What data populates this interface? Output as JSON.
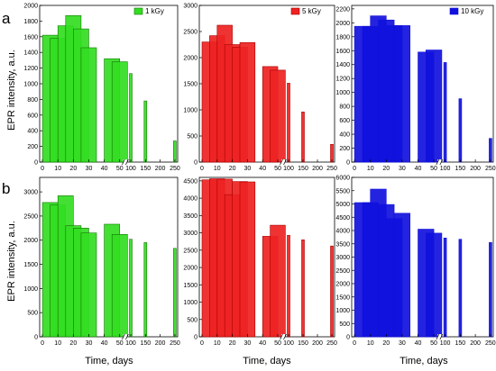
{
  "figure": {
    "y_axis_label": "EPR intensity, a.u.",
    "x_axis_label": "Time, days",
    "row_labels": [
      "a",
      "b"
    ]
  },
  "chart_data": [
    {
      "type": "bar",
      "row": "a",
      "legend": "1 kGy",
      "legend_position": "top-right",
      "color": "#33dd22",
      "edge_color": "#117700",
      "x_tick_labels": [
        "0",
        "10",
        "20",
        "30",
        "40",
        "50",
        "100",
        "150",
        "200",
        "250"
      ],
      "x_break": true,
      "ylim": [
        0,
        2000
      ],
      "y_ticks": [
        0,
        200,
        400,
        600,
        800,
        1000,
        1200,
        1400,
        1600,
        1800,
        2000
      ],
      "x": [
        0,
        5,
        10,
        15,
        20,
        25,
        40,
        45,
        100,
        150,
        250
      ],
      "values": [
        1620,
        1580,
        1740,
        1870,
        1700,
        1460,
        1320,
        1280,
        1130,
        780,
        270
      ]
    },
    {
      "type": "bar",
      "row": "a",
      "legend": "5 kGy",
      "legend_position": "top-right",
      "color": "#ee2222",
      "edge_color": "#aa0000",
      "x_tick_labels": [
        "0",
        "10",
        "20",
        "30",
        "40",
        "50",
        "100",
        "150",
        "200",
        "250"
      ],
      "x_break": true,
      "ylim": [
        0,
        3000
      ],
      "y_ticks": [
        0,
        500,
        1000,
        1500,
        2000,
        2500,
        3000
      ],
      "x": [
        0,
        5,
        10,
        15,
        20,
        25,
        40,
        45,
        100,
        150,
        250
      ],
      "values": [
        2300,
        2420,
        2620,
        2250,
        2200,
        2290,
        1830,
        1760,
        1510,
        960,
        340
      ]
    },
    {
      "type": "bar",
      "row": "a",
      "legend": "10 kGy",
      "legend_position": "top-right",
      "color": "#1111dd",
      "edge_color": "#1111dd",
      "x_tick_labels": [
        "0",
        "10",
        "20",
        "30",
        "40",
        "50",
        "100",
        "150",
        "200",
        "250"
      ],
      "x_break": true,
      "ylim": [
        0,
        2250
      ],
      "y_ticks": [
        0,
        200,
        400,
        600,
        800,
        1000,
        1200,
        1400,
        1600,
        1800,
        2000,
        2200
      ],
      "x": [
        0,
        5,
        10,
        15,
        20,
        25,
        40,
        45,
        100,
        150,
        250
      ],
      "values": [
        1950,
        1950,
        2100,
        2040,
        1960,
        1960,
        1580,
        1610,
        1430,
        910,
        340
      ]
    },
    {
      "type": "bar",
      "row": "b",
      "legend": "",
      "legend_position": "",
      "color": "#33dd22",
      "edge_color": "#117700",
      "x_tick_labels": [
        "0",
        "10",
        "20",
        "30",
        "40",
        "50",
        "100",
        "150",
        "200",
        "250"
      ],
      "x_break": true,
      "ylim": [
        0,
        3300
      ],
      "y_ticks": [
        0,
        500,
        1000,
        1500,
        2000,
        2500,
        3000
      ],
      "x": [
        0,
        5,
        10,
        15,
        20,
        25,
        40,
        45,
        100,
        150,
        250
      ],
      "values": [
        2780,
        2730,
        2920,
        2300,
        2250,
        2150,
        2330,
        2120,
        2020,
        1950,
        1830
      ]
    },
    {
      "type": "bar",
      "row": "b",
      "legend": "",
      "legend_position": "",
      "color": "#ee2222",
      "edge_color": "#aa0000",
      "x_tick_labels": [
        "0",
        "10",
        "20",
        "30",
        "40",
        "50",
        "100",
        "150",
        "200",
        "250"
      ],
      "x_break": true,
      "ylim": [
        0,
        4600
      ],
      "y_ticks": [
        0,
        500,
        1000,
        1500,
        2000,
        2500,
        3000,
        3500,
        4000,
        4500
      ],
      "x": [
        0,
        5,
        10,
        15,
        20,
        25,
        40,
        45,
        100,
        150,
        250
      ],
      "values": [
        4530,
        4560,
        4550,
        4100,
        4480,
        4470,
        2900,
        3220,
        2930,
        2800,
        2620
      ]
    },
    {
      "type": "bar",
      "row": "b",
      "legend": "",
      "legend_position": "",
      "color": "#1111dd",
      "edge_color": "#1111dd",
      "x_tick_labels": [
        "0",
        "10",
        "20",
        "30",
        "40",
        "50",
        "100",
        "150",
        "200",
        "250"
      ],
      "x_break": true,
      "ylim": [
        0,
        6000
      ],
      "y_ticks": [
        0,
        500,
        1000,
        1500,
        2000,
        2500,
        3000,
        3500,
        4000,
        4500,
        5000,
        5500,
        6000
      ],
      "x": [
        0,
        5,
        10,
        15,
        20,
        25,
        40,
        45,
        100,
        150,
        250
      ],
      "values": [
        5050,
        5050,
        5560,
        4980,
        4450,
        4650,
        4050,
        3900,
        3720,
        3670,
        3550
      ]
    }
  ]
}
